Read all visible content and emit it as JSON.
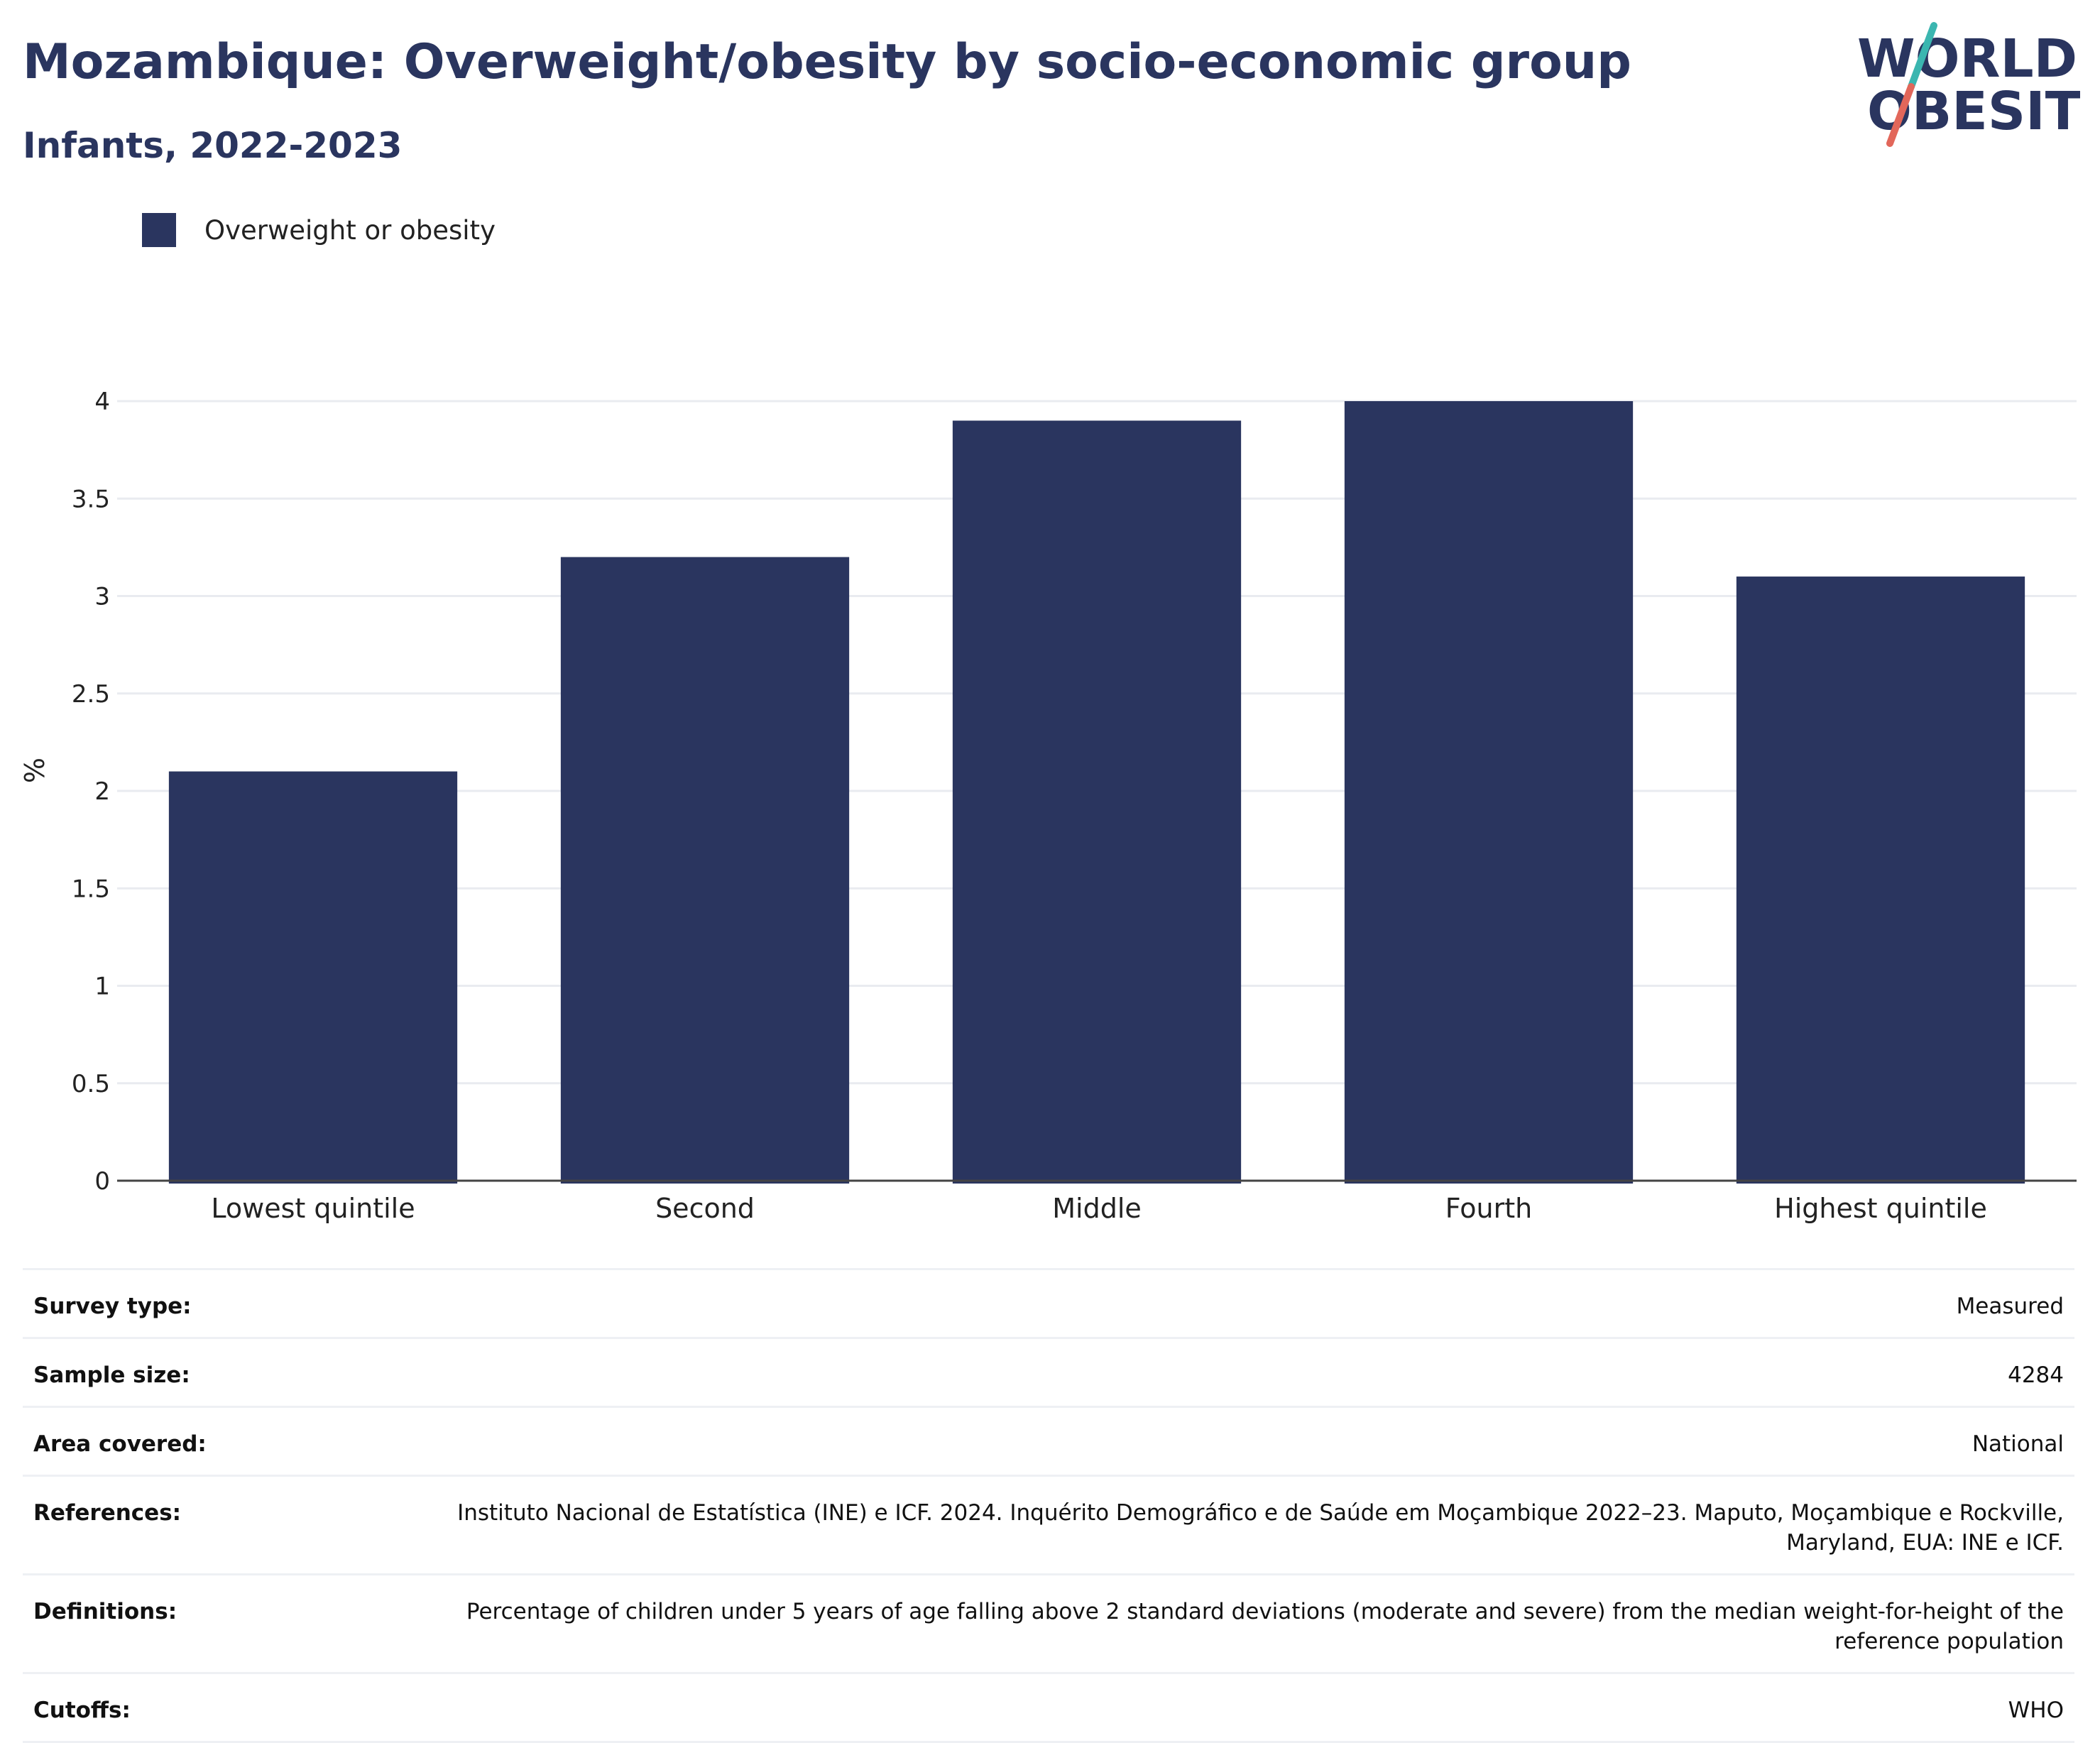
{
  "header": {
    "title": "Mozambique: Overweight/obesity by socio-economic group",
    "subtitle": "Infants, 2022-2023"
  },
  "logo": {
    "line1": "WORLD",
    "line2": "OBESITY",
    "colors": {
      "text": "#2a355f",
      "slash_top": "#3bb6b0",
      "slash_bottom": "#e2675a"
    }
  },
  "legend": {
    "items": [
      {
        "label": "Overweight or obesity",
        "color": "#2a355f"
      }
    ]
  },
  "chart_data": {
    "type": "bar",
    "categories": [
      "Lowest quintile",
      "Second",
      "Middle",
      "Fourth",
      "Highest quintile"
    ],
    "series": [
      {
        "name": "Overweight or obesity",
        "values": [
          2.1,
          3.2,
          3.9,
          4.0,
          3.1
        ],
        "color": "#2a355f"
      }
    ],
    "ylabel": "%",
    "ylim": [
      0,
      4
    ],
    "yticks": [
      "0",
      "0.5",
      "1",
      "1.5",
      "2",
      "2.5",
      "3",
      "3.5",
      "4"
    ],
    "grid": true,
    "legend_position": "top-left"
  },
  "info": {
    "rows": [
      {
        "label": "Survey type:",
        "value": "Measured"
      },
      {
        "label": "Sample size:",
        "value": "4284"
      },
      {
        "label": "Area covered:",
        "value": "National"
      },
      {
        "label": "References:",
        "value": "Instituto Nacional de Estatística (INE) e ICF. 2024. Inquérito Demográfico e de Saúde em Moçambique 2022–23. Maputo, Moçambique e Rockville, Maryland, EUA: INE e ICF."
      },
      {
        "label": "Definitions:",
        "value": "Percentage of children under 5 years of age falling above 2 standard deviations (moderate and severe) from the median weight-for-height of the reference population"
      },
      {
        "label": "Cutoffs:",
        "value": "WHO"
      }
    ]
  }
}
